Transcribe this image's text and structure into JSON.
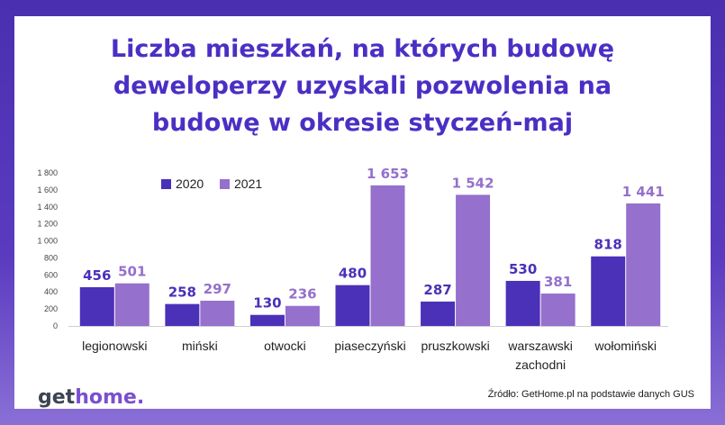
{
  "title_lines": [
    "Liczba mieszkań, na których budowę",
    "deweloperzy uzyskali pozwolenia na",
    "budowę w okresie styczeń-maj"
  ],
  "logo": {
    "part1": "get",
    "part2": "home",
    "part3": "."
  },
  "source": "Źródło: GetHome.pl na podstawie danych GUS",
  "colors": {
    "frame": "#4a2fb0",
    "title": "#4b2fc4",
    "series_2020": "#4b30b8",
    "series_2021": "#9570cc"
  },
  "chart_data": {
    "type": "bar",
    "title": "Liczba mieszkań, na których budowę deweloperzy uzyskali pozwolenia na budowę w okresie styczeń-maj",
    "categories": [
      [
        "legionowski"
      ],
      [
        "miński"
      ],
      [
        "otwocki"
      ],
      [
        "piaseczyński"
      ],
      [
        "pruszkowski"
      ],
      [
        "warszawski",
        "zachodni"
      ],
      [
        "wołomiński"
      ]
    ],
    "series": [
      {
        "name": "2020",
        "values": [
          456,
          258,
          130,
          480,
          287,
          530,
          818
        ],
        "labels": [
          "456",
          "258",
          "130",
          "480",
          "287",
          "530",
          "818"
        ],
        "color": "#4b30b8"
      },
      {
        "name": "2021",
        "values": [
          501,
          297,
          236,
          1653,
          1542,
          381,
          1441
        ],
        "labels": [
          "501",
          "297",
          "236",
          "1 653",
          "1 542",
          "381",
          "1 441"
        ],
        "color": "#9570cc"
      }
    ],
    "ylim": [
      0,
      1800
    ],
    "yticks": [
      0,
      200,
      400,
      600,
      800,
      1000,
      1200,
      1400,
      1600,
      1800
    ],
    "ytick_labels": [
      "0",
      "200",
      "400",
      "600",
      "800",
      "1 000",
      "1 200",
      "1 400",
      "1 600",
      "1 800"
    ],
    "xlabel": "",
    "ylabel": "",
    "grid": false,
    "legend": "top-left"
  }
}
